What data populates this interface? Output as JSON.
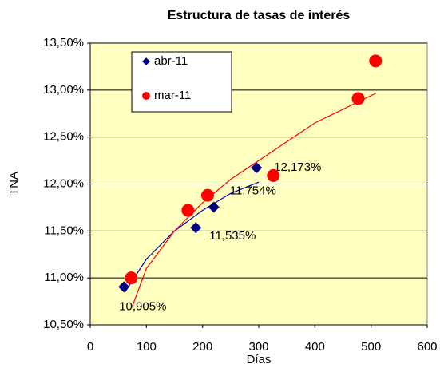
{
  "chart_data": {
    "type": "scatter",
    "title": "Estructura de tasas de interés",
    "x_label": "Días",
    "y_label": "TNA",
    "xlim": [
      0,
      600
    ],
    "xticks": [
      0,
      100,
      200,
      300,
      400,
      500,
      600
    ],
    "ylim": [
      10.5,
      13.5
    ],
    "yticks": [
      {
        "value": 10.5,
        "label": "10,50%"
      },
      {
        "value": 11.0,
        "label": "11,00%"
      },
      {
        "value": 11.5,
        "label": "11,50%"
      },
      {
        "value": 12.0,
        "label": "12,00%"
      },
      {
        "value": 12.5,
        "label": "12,50%"
      },
      {
        "value": 13.0,
        "label": "13,00%"
      },
      {
        "value": 13.5,
        "label": "13,50%"
      }
    ],
    "grid": true,
    "plot_background": "#ffffc0",
    "legend": "upper-left",
    "series": [
      {
        "name": "abr-11",
        "color": "#000080",
        "marker": "diamond",
        "x": [
          60,
          188,
          220,
          296
        ],
        "values": [
          10.905,
          11.535,
          11.754,
          12.173
        ],
        "value_labels": [
          "10,905%",
          "11,535%",
          "11,754%",
          "12,173%"
        ]
      },
      {
        "name": "mar-11",
        "color": "#ff0000",
        "marker": "circle",
        "x": [
          73,
          174,
          209,
          326,
          477,
          508
        ],
        "values": [
          11.0,
          11.72,
          11.88,
          12.09,
          12.91,
          13.31
        ]
      }
    ],
    "trendlines": [
      {
        "color": "#0000cc",
        "x": [
          62,
          100,
          150,
          200,
          250,
          300
        ],
        "values": [
          10.85,
          11.2,
          11.5,
          11.72,
          11.9,
          12.02
        ]
      },
      {
        "color": "#ff0000",
        "x": [
          75,
          100,
          150,
          200,
          250,
          300,
          400,
          510
        ],
        "values": [
          10.7,
          11.1,
          11.5,
          11.8,
          12.05,
          12.25,
          12.65,
          12.97
        ]
      }
    ]
  }
}
